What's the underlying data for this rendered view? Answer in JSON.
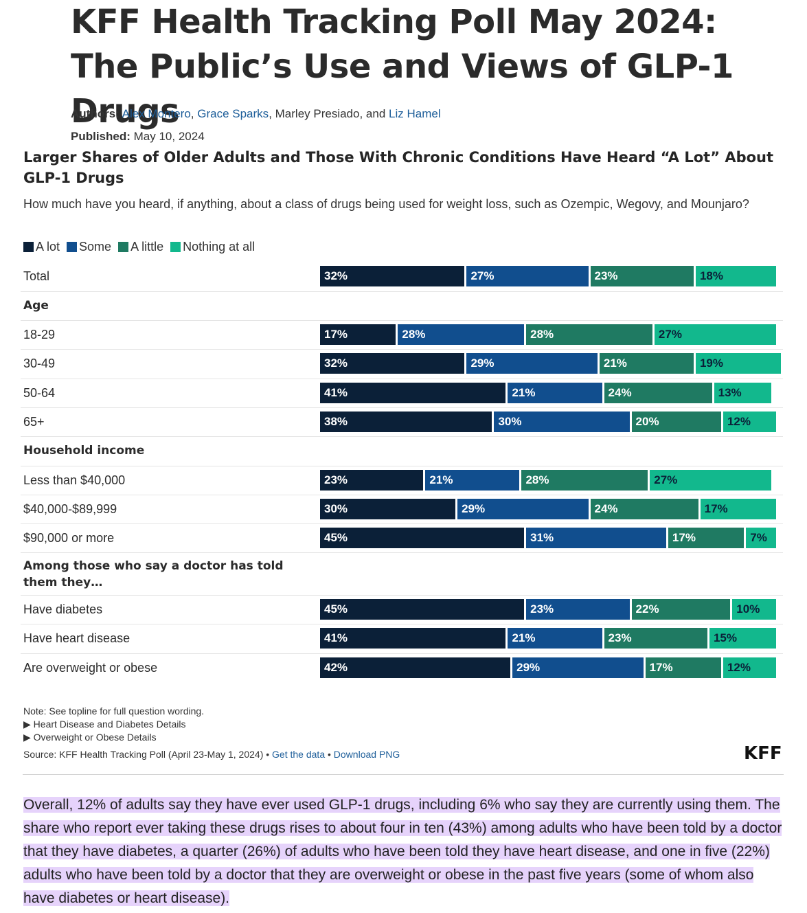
{
  "article": {
    "title": "KFF Health Tracking Poll May 2024: The Public’s Use and Views of GLP-1 Drugs",
    "authors_label": "Authors:",
    "authors": [
      "Alex Montero",
      "Grace Sparks",
      "Marley Presiado",
      "Liz Hamel"
    ],
    "authors_linked": [
      true,
      true,
      false,
      true
    ],
    "published_label": "Published:",
    "published_date": "May 10, 2024"
  },
  "colors": {
    "a_lot": "#0b2038",
    "some": "#114e8e",
    "a_little": "#1f7a62",
    "nothing": "#12b88d"
  },
  "chart_data": {
    "type": "bar",
    "orientation": "horizontal",
    "stacked": true,
    "title": "Larger Shares of Older Adults and Those With Chronic Conditions Have Heard “A Lot” About GLP-1 Drugs",
    "subtitle": "How much have you heard, if anything, about a class of drugs being used for weight loss, such as Ozempic, Wegovy, and Mounjaro?",
    "legend_position": "top-left",
    "series": [
      {
        "name": "A lot",
        "color": "#0b2038"
      },
      {
        "name": "Some",
        "color": "#114e8e"
      },
      {
        "name": "A little",
        "color": "#1f7a62"
      },
      {
        "name": "Nothing at all",
        "color": "#12b88d"
      }
    ],
    "rows": [
      {
        "label": "Total",
        "values": [
          32,
          27,
          23,
          18
        ]
      },
      {
        "label": "Age",
        "group": true
      },
      {
        "label": "18-29",
        "values": [
          17,
          28,
          28,
          27
        ]
      },
      {
        "label": "30-49",
        "values": [
          32,
          29,
          21,
          19
        ]
      },
      {
        "label": "50-64",
        "values": [
          41,
          21,
          24,
          13
        ]
      },
      {
        "label": "65+",
        "values": [
          38,
          30,
          20,
          12
        ]
      },
      {
        "label": "Household income",
        "group": true
      },
      {
        "label": "Less than $40,000",
        "values": [
          23,
          21,
          28,
          27
        ]
      },
      {
        "label": "$40,000-$89,999",
        "values": [
          30,
          29,
          24,
          17
        ]
      },
      {
        "label": "$90,000 or more",
        "values": [
          45,
          31,
          17,
          7
        ]
      },
      {
        "label": "Among those who say a doctor has told them they…",
        "group": true
      },
      {
        "label": "Have diabetes",
        "values": [
          45,
          23,
          22,
          10
        ]
      },
      {
        "label": "Have heart disease",
        "values": [
          41,
          21,
          23,
          15
        ]
      },
      {
        "label": "Are overweight or obese",
        "values": [
          42,
          29,
          17,
          12
        ]
      }
    ]
  },
  "footer": {
    "note": "Note: See topline for full question wording.",
    "toggle1": "Heart Disease and Diabetes Details",
    "toggle2": "Overweight or Obese Details",
    "source": "Source: KFF Health Tracking Poll (April 23-May 1, 2024) •",
    "get_data": "Get the data",
    "separator": "•",
    "download": "Download PNG",
    "logo": "KFF"
  },
  "paragraph": "Overall, 12% of adults say they have ever used GLP-1 drugs, including 6% who say they are currently using them. The share who report ever taking these drugs rises to about four in ten (43%) among adults who have been told by a doctor that they have diabetes, a quarter (26%) of adults who have been told they have heart disease, and one in five (22%) adults who have been told by a doctor that they are overweight or obese in the past five years (some of whom also have diabetes or heart disease)."
}
